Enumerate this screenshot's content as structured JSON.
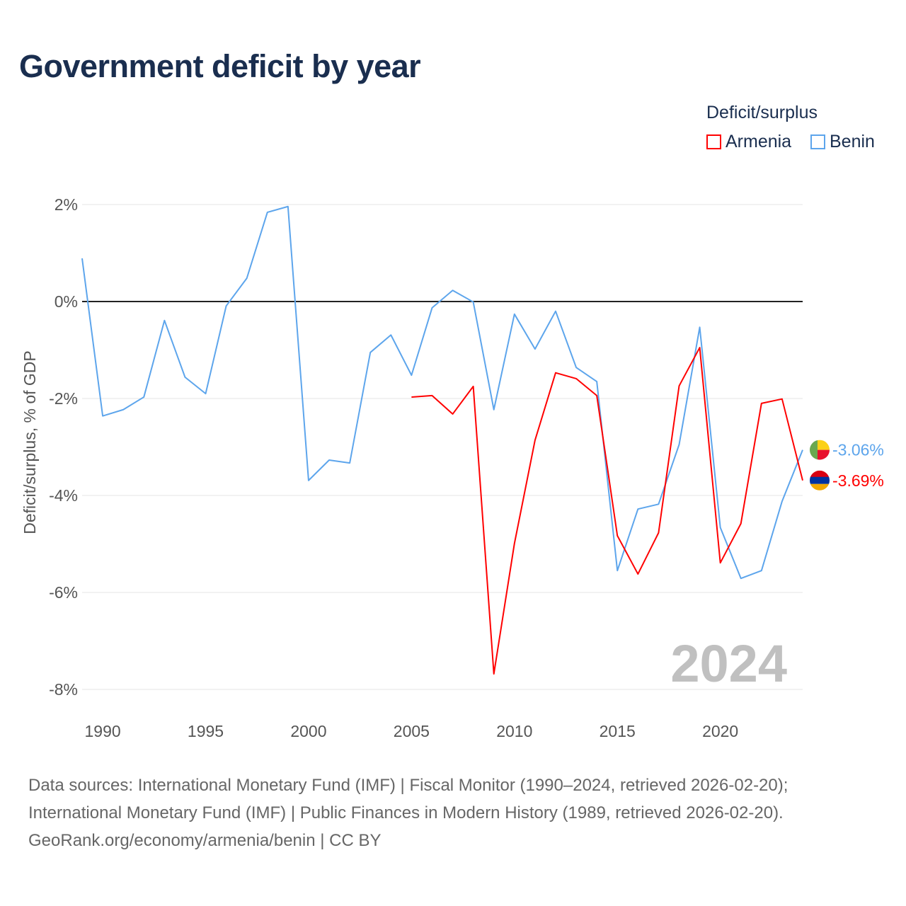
{
  "title": "Government deficit by year",
  "legend": {
    "title": "Deficit/surplus",
    "items": [
      {
        "label": "Armenia",
        "color": "#ff0000"
      },
      {
        "label": "Benin",
        "color": "#5da5ec"
      }
    ]
  },
  "year_watermark": "2024",
  "footer": {
    "line1": "Data sources: International Monetary Fund (IMF) | Fiscal Monitor (1990–2024, retrieved 2026-02-20);",
    "line2": "International Monetary Fund (IMF) | Public Finances in Modern History (1989, retrieved 2026-02-20).",
    "line3": "GeoRank.org/economy/armenia/benin | CC BY"
  },
  "chart_data": {
    "type": "line",
    "title": "Government deficit by year",
    "ylabel": "Deficit/surplus, % of GDP",
    "xlabel": "",
    "xlim": [
      1989,
      2024
    ],
    "ylim": [
      -8,
      2
    ],
    "yticks": [
      2,
      0,
      -2,
      -4,
      -6,
      -8
    ],
    "ytick_labels": [
      "2%",
      "0%",
      "-2%",
      "-4%",
      "-6%",
      "-8%"
    ],
    "xticks": [
      1990,
      1995,
      2000,
      2005,
      2010,
      2015,
      2020
    ],
    "xtick_labels": [
      "1990",
      "1995",
      "2000",
      "2005",
      "2010",
      "2015",
      "2020"
    ],
    "grid": true,
    "legend_position": "top-right",
    "series": [
      {
        "name": "Benin",
        "color": "#5da5ec",
        "end_label": "-3.06%",
        "flag": "benin",
        "x": [
          1989,
          1990,
          1991,
          1992,
          1993,
          1994,
          1995,
          1996,
          1997,
          1998,
          1999,
          2000,
          2001,
          2002,
          2003,
          2004,
          2005,
          2006,
          2007,
          2008,
          2009,
          2010,
          2011,
          2012,
          2013,
          2014,
          2015,
          2016,
          2017,
          2018,
          2019,
          2020,
          2021,
          2022,
          2023,
          2024
        ],
        "values": [
          0.89,
          -2.36,
          -2.23,
          -1.97,
          -0.39,
          -1.56,
          -1.9,
          -0.09,
          0.48,
          1.84,
          1.96,
          -3.69,
          -3.27,
          -3.33,
          -1.05,
          -0.69,
          -1.52,
          -0.13,
          0.23,
          -0.01,
          -2.23,
          -0.26,
          -0.98,
          -0.2,
          -1.36,
          -1.65,
          -5.55,
          -4.28,
          -4.18,
          -2.95,
          -0.53,
          -4.66,
          -5.71,
          -5.55,
          -4.12,
          -3.06
        ]
      },
      {
        "name": "Armenia",
        "color": "#ff0000",
        "end_label": "-3.69%",
        "flag": "armenia",
        "x": [
          2005,
          2006,
          2007,
          2008,
          2009,
          2010,
          2011,
          2012,
          2013,
          2014,
          2015,
          2016,
          2017,
          2018,
          2019,
          2020,
          2021,
          2022,
          2023,
          2024
        ],
        "values": [
          -1.97,
          -1.94,
          -2.32,
          -1.75,
          -7.68,
          -4.99,
          -2.86,
          -1.47,
          -1.59,
          -1.94,
          -4.83,
          -5.62,
          -4.77,
          -1.74,
          -0.95,
          -5.39,
          -4.58,
          -2.1,
          -2.01,
          -3.69
        ]
      }
    ]
  }
}
